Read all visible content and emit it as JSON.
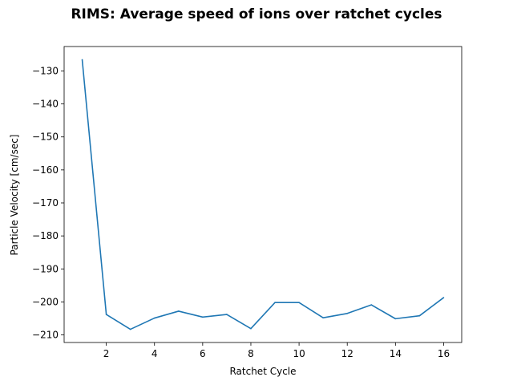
{
  "chart_data": {
    "type": "line",
    "title": "RIMS: Average speed of ions over ratchet cycles",
    "xlabel": "Ratchet Cycle",
    "ylabel": "Particle Velocity [cm/sec]",
    "xlim": [
      0.25,
      16.75
    ],
    "ylim": [
      -212.3,
      -122.6
    ],
    "xticks": [
      2,
      4,
      6,
      8,
      10,
      12,
      14,
      16
    ],
    "yticks": [
      -130,
      -140,
      -150,
      -160,
      -170,
      -180,
      -190,
      -200,
      -210
    ],
    "grid": false,
    "series": [
      {
        "color": "#1f77b4",
        "x": [
          1,
          2,
          3,
          4,
          5,
          6,
          7,
          8,
          9,
          10,
          11,
          12,
          13,
          14,
          15,
          16
        ],
        "y": [
          -126.6,
          -203.8,
          -208.3,
          -204.9,
          -202.8,
          -204.6,
          -203.8,
          -208.1,
          -200.2,
          -200.2,
          -204.8,
          -203.5,
          -200.9,
          -205.1,
          -204.2,
          -198.7
        ]
      }
    ]
  }
}
